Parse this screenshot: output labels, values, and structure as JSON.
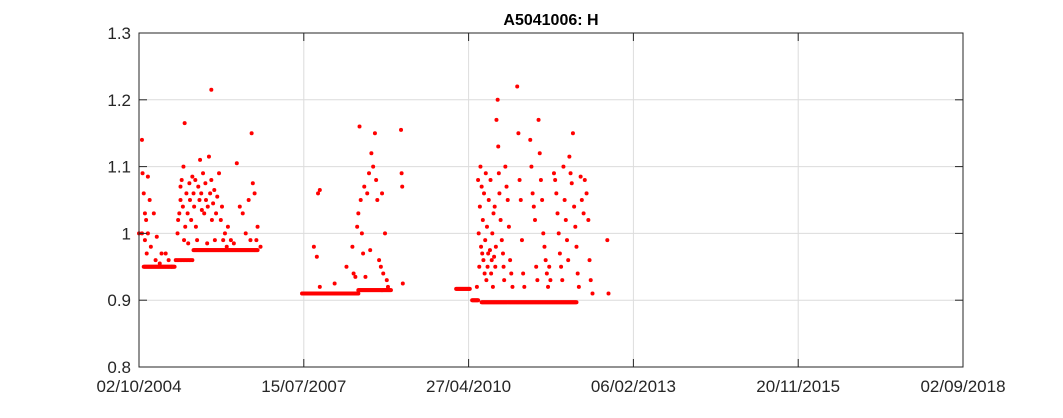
{
  "chart_data": {
    "type": "scatter",
    "title": "A5041006: H",
    "xlabel": "",
    "ylabel": "",
    "ylim": [
      0.8,
      1.3
    ],
    "grid": true,
    "marker_color": "#ff0000",
    "axis_color": "#262626",
    "grid_color": "#dcdcdc",
    "x_ticks": [
      "02/10/2004",
      "15/07/2007",
      "27/04/2010",
      "06/02/2013",
      "20/11/2015",
      "02/09/2018"
    ],
    "y_ticks": [
      0.8,
      0.9,
      1.0,
      1.1,
      1.2,
      1.3
    ],
    "y_tick_labels": [
      "0.8",
      "0.9",
      "1",
      "1.1",
      "1.2",
      "1.3"
    ],
    "x_unit": "years since 02/10/2004",
    "xlim": [
      0,
      13.9
    ],
    "series": [
      {
        "name": "H",
        "baselines": [
          {
            "x_start": 0.0,
            "x_end": 0.05,
            "value": 1.0,
            "count": 2
          },
          {
            "x_start": 0.08,
            "x_end": 0.6,
            "value": 0.95,
            "count": 50
          },
          {
            "x_start": 0.62,
            "x_end": 0.9,
            "value": 0.96,
            "count": 12
          },
          {
            "x_start": 0.92,
            "x_end": 2.0,
            "value": 0.975,
            "count": 95
          },
          {
            "x_start": 2.75,
            "x_end": 3.7,
            "value": 0.91,
            "count": 90
          },
          {
            "x_start": 3.7,
            "x_end": 4.25,
            "value": 0.915,
            "count": 50
          },
          {
            "x_start": 5.35,
            "x_end": 5.58,
            "value": 0.917,
            "count": 22
          },
          {
            "x_start": 5.62,
            "x_end": 5.72,
            "value": 0.9,
            "count": 10
          },
          {
            "x_start": 5.78,
            "x_end": 7.38,
            "value": 0.897,
            "count": 150
          }
        ],
        "points": [
          [
            0.05,
            1.14
          ],
          [
            0.06,
            1.09
          ],
          [
            0.08,
            1.06
          ],
          [
            0.1,
            1.03
          ],
          [
            0.12,
            1.02
          ],
          [
            0.1,
            0.99
          ],
          [
            0.13,
            0.97
          ],
          [
            0.15,
            1.0
          ],
          [
            0.15,
            1.085
          ],
          [
            0.18,
            1.05
          ],
          [
            0.2,
            0.98
          ],
          [
            0.25,
            1.03
          ],
          [
            0.3,
            0.995
          ],
          [
            0.35,
            0.955
          ],
          [
            0.28,
            0.96
          ],
          [
            0.38,
            0.97
          ],
          [
            0.45,
            0.97
          ],
          [
            0.5,
            0.96
          ],
          [
            0.55,
            0.95
          ],
          [
            0.65,
            1.0
          ],
          [
            0.66,
            1.02
          ],
          [
            0.68,
            1.03
          ],
          [
            0.7,
            1.05
          ],
          [
            0.7,
            1.07
          ],
          [
            0.72,
            1.08
          ],
          [
            0.74,
            1.04
          ],
          [
            0.75,
            1.1
          ],
          [
            0.76,
            0.99
          ],
          [
            0.77,
            1.165
          ],
          [
            0.78,
            1.01
          ],
          [
            0.8,
            1.06
          ],
          [
            0.82,
            1.03
          ],
          [
            0.83,
            0.985
          ],
          [
            0.85,
            1.075
          ],
          [
            0.86,
            1.05
          ],
          [
            0.88,
            1.02
          ],
          [
            0.9,
            1.085
          ],
          [
            0.92,
            1.06
          ],
          [
            0.93,
            1.04
          ],
          [
            0.95,
            1.08
          ],
          [
            0.96,
            1.01
          ],
          [
            0.98,
            0.99
          ],
          [
            1.0,
            1.07
          ],
          [
            1.02,
            1.05
          ],
          [
            1.03,
            1.11
          ],
          [
            1.05,
            1.06
          ],
          [
            1.06,
            1.035
          ],
          [
            1.08,
            1.09
          ],
          [
            1.1,
            1.03
          ],
          [
            1.12,
            1.075
          ],
          [
            1.13,
            1.05
          ],
          [
            1.15,
            0.985
          ],
          [
            1.16,
            1.04
          ],
          [
            1.18,
            1.115
          ],
          [
            1.2,
            1.06
          ],
          [
            1.22,
            1.08
          ],
          [
            1.23,
            1.02
          ],
          [
            1.25,
            1.045
          ],
          [
            1.27,
            1.065
          ],
          [
            1.28,
            0.99
          ],
          [
            1.3,
            1.03
          ],
          [
            1.32,
            1.055
          ],
          [
            1.35,
            1.09
          ],
          [
            1.38,
            1.02
          ],
          [
            1.4,
            1.04
          ],
          [
            1.42,
            0.99
          ],
          [
            1.45,
            1.0
          ],
          [
            1.48,
            0.98
          ],
          [
            1.22,
            1.215
          ],
          [
            1.5,
            1.01
          ],
          [
            1.55,
            0.99
          ],
          [
            1.6,
            0.985
          ],
          [
            1.65,
            1.105
          ],
          [
            1.7,
            1.04
          ],
          [
            1.75,
            1.03
          ],
          [
            1.8,
            1.0
          ],
          [
            1.85,
            1.05
          ],
          [
            1.9,
            1.15
          ],
          [
            1.92,
            1.075
          ],
          [
            1.95,
            1.06
          ],
          [
            2.0,
            1.01
          ],
          [
            1.98,
            0.99
          ],
          [
            2.05,
            0.98
          ],
          [
            1.88,
            0.99
          ],
          [
            2.95,
            0.98
          ],
          [
            3.0,
            0.965
          ],
          [
            3.05,
            1.065
          ],
          [
            3.02,
            1.06
          ],
          [
            3.05,
            0.92
          ],
          [
            3.3,
            0.925
          ],
          [
            3.5,
            0.95
          ],
          [
            3.6,
            0.98
          ],
          [
            3.62,
            0.94
          ],
          [
            3.65,
            0.935
          ],
          [
            3.68,
            1.01
          ],
          [
            3.7,
            1.03
          ],
          [
            3.72,
            1.16
          ],
          [
            3.74,
            1.05
          ],
          [
            3.76,
            1.0
          ],
          [
            3.78,
            0.97
          ],
          [
            3.8,
            1.07
          ],
          [
            3.82,
            0.935
          ],
          [
            3.85,
            1.06
          ],
          [
            3.88,
            1.09
          ],
          [
            3.9,
            0.975
          ],
          [
            3.92,
            1.12
          ],
          [
            3.95,
            1.1
          ],
          [
            3.98,
            1.15
          ],
          [
            4.0,
            1.08
          ],
          [
            4.02,
            1.05
          ],
          [
            4.05,
            0.96
          ],
          [
            4.08,
            0.95
          ],
          [
            4.1,
            1.06
          ],
          [
            4.12,
            0.94
          ],
          [
            4.15,
            1.0
          ],
          [
            4.18,
            0.93
          ],
          [
            4.2,
            0.92
          ],
          [
            4.42,
            1.155
          ],
          [
            4.43,
            1.09
          ],
          [
            4.44,
            1.07
          ],
          [
            4.45,
            0.925
          ],
          [
            5.7,
            0.92
          ],
          [
            5.72,
            1.08
          ],
          [
            5.73,
            1.0
          ],
          [
            5.74,
            0.95
          ],
          [
            5.75,
            1.04
          ],
          [
            5.76,
            1.1
          ],
          [
            5.77,
            0.98
          ],
          [
            5.78,
            1.07
          ],
          [
            5.79,
            0.97
          ],
          [
            5.8,
            1.02
          ],
          [
            5.81,
            0.96
          ],
          [
            5.82,
            1.06
          ],
          [
            5.83,
            0.94
          ],
          [
            5.84,
            0.99
          ],
          [
            5.85,
            1.09
          ],
          [
            5.86,
            0.93
          ],
          [
            5.87,
            1.01
          ],
          [
            5.88,
            0.95
          ],
          [
            5.89,
            0.97
          ],
          [
            5.9,
            1.05
          ],
          [
            5.92,
            0.975
          ],
          [
            5.93,
            1.08
          ],
          [
            5.94,
            0.94
          ],
          [
            5.95,
            0.96
          ],
          [
            5.96,
            1.0
          ],
          [
            5.97,
            0.92
          ],
          [
            5.98,
            1.03
          ],
          [
            5.99,
            0.965
          ],
          [
            6.0,
            1.04
          ],
          [
            6.01,
            0.95
          ],
          [
            6.02,
            0.98
          ],
          [
            6.03,
            1.17
          ],
          [
            6.05,
            1.2
          ],
          [
            6.06,
            1.13
          ],
          [
            6.07,
            1.09
          ],
          [
            6.08,
            1.06
          ],
          [
            6.1,
            1.02
          ],
          [
            6.12,
            0.99
          ],
          [
            6.14,
            0.97
          ],
          [
            6.15,
            0.95
          ],
          [
            6.16,
            0.93
          ],
          [
            6.18,
            1.1
          ],
          [
            6.2,
            1.07
          ],
          [
            6.22,
            1.05
          ],
          [
            6.24,
            1.01
          ],
          [
            6.26,
            0.96
          ],
          [
            6.28,
            0.94
          ],
          [
            6.3,
            0.92
          ],
          [
            6.38,
            1.22
          ],
          [
            6.4,
            1.15
          ],
          [
            6.42,
            1.08
          ],
          [
            6.44,
            1.05
          ],
          [
            6.46,
            0.99
          ],
          [
            6.48,
            0.94
          ],
          [
            6.5,
            0.92
          ],
          [
            6.6,
            1.14
          ],
          [
            6.62,
            1.1
          ],
          [
            6.64,
            1.06
          ],
          [
            6.66,
            1.04
          ],
          [
            6.68,
            1.02
          ],
          [
            6.7,
            0.95
          ],
          [
            6.72,
            0.93
          ],
          [
            6.74,
            1.17
          ],
          [
            6.76,
            1.12
          ],
          [
            6.78,
            1.08
          ],
          [
            6.8,
            1.05
          ],
          [
            6.82,
            1.0
          ],
          [
            6.84,
            0.98
          ],
          [
            6.86,
            0.96
          ],
          [
            6.88,
            0.94
          ],
          [
            6.9,
            0.92
          ],
          [
            6.92,
            0.95
          ],
          [
            6.94,
            0.93
          ],
          [
            7.0,
            1.09
          ],
          [
            7.02,
            1.08
          ],
          [
            7.04,
            1.06
          ],
          [
            7.06,
            1.03
          ],
          [
            7.08,
            1.0
          ],
          [
            7.1,
            0.97
          ],
          [
            7.12,
            0.95
          ],
          [
            7.14,
            0.93
          ],
          [
            7.16,
            1.1
          ],
          [
            7.18,
            1.05
          ],
          [
            7.2,
            1.02
          ],
          [
            7.22,
            0.99
          ],
          [
            7.24,
            0.96
          ],
          [
            7.26,
            1.115
          ],
          [
            7.28,
            1.09
          ],
          [
            7.3,
            1.075
          ],
          [
            7.32,
            1.15
          ],
          [
            7.34,
            1.04
          ],
          [
            7.36,
            1.01
          ],
          [
            7.38,
            0.98
          ],
          [
            7.4,
            0.94
          ],
          [
            7.42,
            0.92
          ],
          [
            7.45,
            1.085
          ],
          [
            7.47,
            1.05
          ],
          [
            7.5,
            1.03
          ],
          [
            7.52,
            1.08
          ],
          [
            7.55,
            1.06
          ],
          [
            7.58,
            1.02
          ],
          [
            7.6,
            0.96
          ],
          [
            7.62,
            0.93
          ],
          [
            7.65,
            0.91
          ],
          [
            7.9,
            0.99
          ],
          [
            7.92,
            0.91
          ]
        ]
      }
    ]
  }
}
